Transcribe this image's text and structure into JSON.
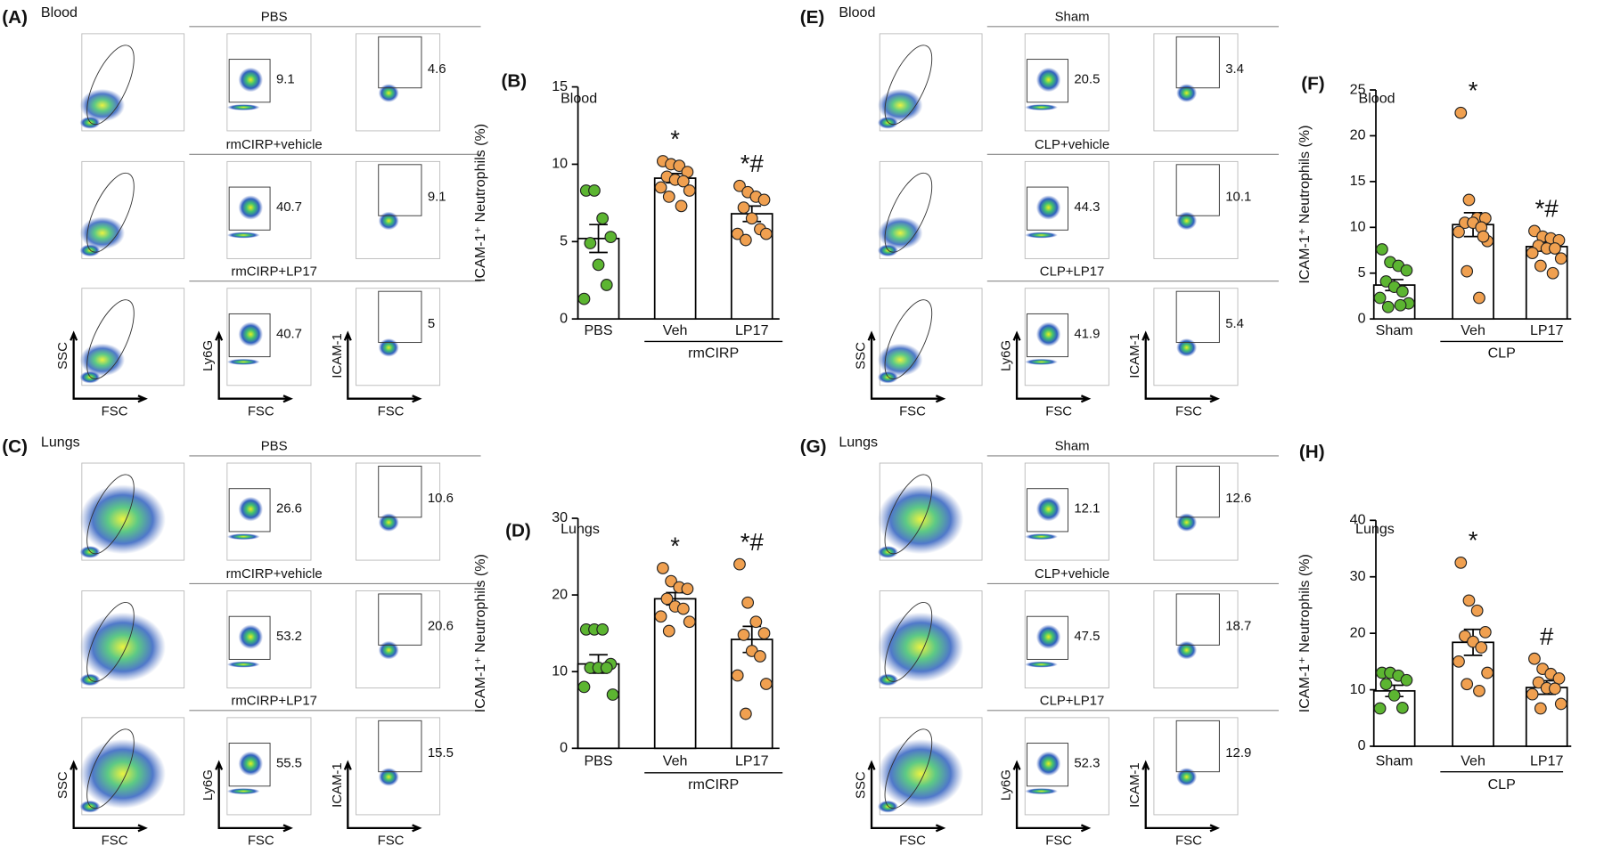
{
  "flow_axes": {
    "ssc": "SSC",
    "fsc": "FSC",
    "ly6g": "Ly6G",
    "icam": "ICAM-1"
  },
  "flow_panels": [
    {
      "letter": "(A)",
      "tissue": "Blood",
      "groups": [
        {
          "name": "PBS",
          "gates": [
            9.1,
            4.6
          ]
        },
        {
          "name": "rmCIRP+vehicle",
          "gates": [
            40.7,
            9.1
          ]
        },
        {
          "name": "rmCIRP+LP17",
          "gates": [
            40.7,
            5
          ]
        }
      ]
    },
    {
      "letter": "(C)",
      "tissue": "Lungs",
      "groups": [
        {
          "name": "PBS",
          "gates": [
            26.6,
            10.6
          ]
        },
        {
          "name": "rmCIRP+vehicle",
          "gates": [
            53.2,
            20.6
          ]
        },
        {
          "name": "rmCIRP+LP17",
          "gates": [
            55.5,
            15.5
          ]
        }
      ]
    },
    {
      "letter": "(E)",
      "tissue": "Blood",
      "groups": [
        {
          "name": "Sham",
          "gates": [
            20.5,
            3.4
          ]
        },
        {
          "name": "CLP+vehicle",
          "gates": [
            44.3,
            10.1
          ]
        },
        {
          "name": "CLP+LP17",
          "gates": [
            41.9,
            5.4
          ]
        }
      ]
    },
    {
      "letter": "(G)",
      "tissue": "Lungs",
      "groups": [
        {
          "name": "Sham",
          "gates": [
            12.1,
            12.6
          ]
        },
        {
          "name": "CLP+vehicle",
          "gates": [
            47.5,
            18.7
          ]
        },
        {
          "name": "CLP+LP17",
          "gates": [
            52.3,
            12.9
          ]
        }
      ]
    }
  ],
  "chart_data": [
    {
      "type": "bar",
      "letter": "(B)",
      "annotation": "Blood",
      "y_label": "ICAM-1⁺ Neutrophils (%)",
      "categories": [
        "PBS",
        "Veh",
        "LP17"
      ],
      "group_label": "rmCIRP",
      "colors": [
        "#5cb531",
        "#f0a050",
        "#f0a050"
      ],
      "values": [
        5.2,
        9.1,
        6.8
      ],
      "errors": [
        0.9,
        0.3,
        0.5
      ],
      "points": [
        [
          8.3,
          8.3,
          6.5,
          5.3,
          4.9,
          3.5,
          2.2,
          1.3
        ],
        [
          10.2,
          10,
          9.9,
          9.5,
          9.2,
          9,
          8.9,
          8.5,
          8.3,
          7.9,
          7.3
        ],
        [
          8.6,
          8.2,
          7.9,
          7.7,
          7.2,
          6.5,
          5.8,
          5.5,
          5.5,
          5.1
        ]
      ],
      "significance": [
        null,
        "*",
        "*#"
      ],
      "ylim": [
        0,
        15
      ],
      "yticks": [
        0,
        5,
        10,
        15
      ]
    },
    {
      "type": "bar",
      "letter": "(D)",
      "annotation": "Lungs",
      "y_label": "ICAM-1⁺ Neutrophils (%)",
      "categories": [
        "PBS",
        "Veh",
        "LP17"
      ],
      "group_label": "rmCIRP",
      "colors": [
        "#5cb531",
        "#f0a050",
        "#f0a050"
      ],
      "values": [
        11,
        19.5,
        14.2
      ],
      "errors": [
        1.2,
        0.8,
        1.7
      ],
      "points": [
        [
          15.5,
          15.5,
          15.5,
          11,
          10.5,
          10.5,
          10.5,
          8,
          7
        ],
        [
          23.5,
          21.8,
          21,
          20.8,
          19.5,
          18.5,
          18.2,
          17.2,
          16.5,
          15.3
        ],
        [
          24,
          19,
          16.5,
          15,
          14.8,
          12.7,
          12,
          9.5,
          8.4,
          4.5
        ]
      ],
      "significance": [
        null,
        "*",
        "*#"
      ],
      "ylim": [
        0,
        30
      ],
      "yticks": [
        0,
        10,
        20,
        30
      ]
    },
    {
      "type": "bar",
      "letter": "(F)",
      "annotation": "Blood",
      "y_label": "ICAM-1⁺ Neutrophils (%)",
      "categories": [
        "Sham",
        "Veh",
        "LP17"
      ],
      "group_label": "CLP",
      "colors": [
        "#5cb531",
        "#f0a050",
        "#f0a050"
      ],
      "values": [
        3.7,
        10.3,
        7.9
      ],
      "errors": [
        0.6,
        1.3,
        0.5
      ],
      "points": [
        [
          7.6,
          6.2,
          5.8,
          5.3,
          4.1,
          3.5,
          3,
          2.3,
          1.7,
          1.3,
          1.5
        ],
        [
          22.5,
          13,
          11,
          11,
          10.5,
          10.5,
          10,
          9.5,
          8.5,
          5.2,
          2.3,
          9
        ],
        [
          9.6,
          9,
          8.8,
          8.6,
          8,
          7.7,
          7.7,
          7.2,
          6.6,
          5.8,
          5
        ]
      ],
      "significance": [
        null,
        "*",
        "*#"
      ],
      "ylim": [
        0,
        25
      ],
      "yticks": [
        0,
        5,
        10,
        15,
        20,
        25
      ]
    },
    {
      "type": "bar",
      "letter": "(H)",
      "annotation": "Lungs",
      "y_label": "ICAM-1⁺ Neutrophils (%)",
      "categories": [
        "Sham",
        "Veh",
        "LP17"
      ],
      "group_label": "CLP",
      "colors": [
        "#5cb531",
        "#f0a050",
        "#f0a050"
      ],
      "values": [
        9.8,
        18.4,
        10.4
      ],
      "errors": [
        1,
        2.3,
        1.2
      ],
      "points": [
        [
          13,
          13,
          12.5,
          11.7,
          11,
          9,
          6.8,
          6.7
        ],
        [
          32.5,
          25.8,
          24,
          20.2,
          19.5,
          18.5,
          17.5,
          15,
          13,
          11,
          9.8
        ],
        [
          15.5,
          13.7,
          12.8,
          12,
          11.3,
          10.3,
          10.2,
          9.2,
          7.5,
          6.7
        ]
      ],
      "significance": [
        null,
        "*",
        "#"
      ],
      "ylim": [
        0,
        40
      ],
      "yticks": [
        0,
        10,
        20,
        30,
        40
      ]
    }
  ]
}
